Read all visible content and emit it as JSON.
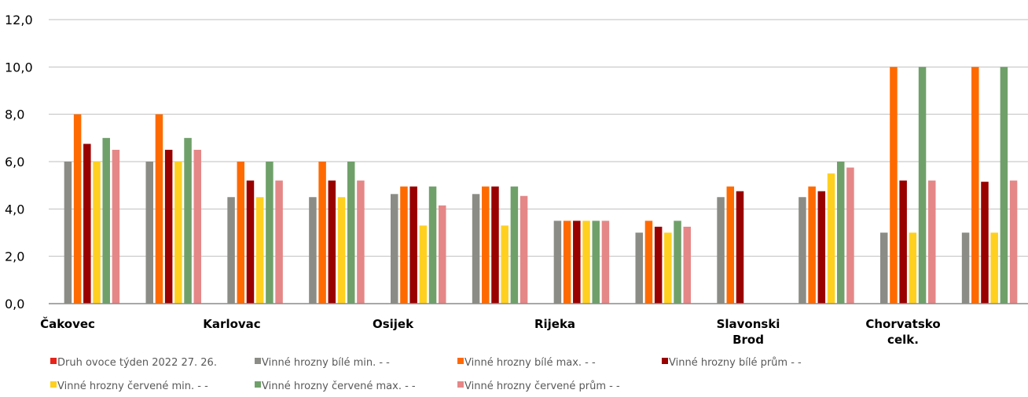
{
  "chart_data": {
    "type": "bar",
    "categories": [
      "Čakovec",
      "",
      "Karlovac",
      "",
      "Osijek",
      "",
      "Rijeka",
      "",
      "Slavonski Brod",
      "",
      "Chorvatsko celk.",
      ""
    ],
    "category_labels": [
      [
        "Čakovec"
      ],
      [],
      [
        "Karlovac"
      ],
      [],
      [
        "Osijek"
      ],
      [],
      [
        "Rijeka"
      ],
      [],
      [
        "Slavonski",
        "Brod"
      ],
      [],
      [
        "Chorvatsko",
        "celk."
      ],
      []
    ],
    "series": [
      {
        "name": "Druh ovoce týden 2022 27. 26.",
        "color": "#e8231a",
        "values": [
          null,
          null,
          null,
          null,
          null,
          null,
          null,
          null,
          null,
          null,
          null,
          null
        ]
      },
      {
        "name": "Vinné hrozny bílé min. - -",
        "color": "#8c8c86",
        "values": [
          6.0,
          6.0,
          4.5,
          4.5,
          4.63,
          4.63,
          3.5,
          3.0,
          4.5,
          4.5,
          3.0,
          3.0
        ]
      },
      {
        "name": "Vinné hrozny bílé max. - -",
        "color": "#ff6a00",
        "values": [
          8.0,
          8.0,
          6.0,
          6.0,
          4.95,
          4.95,
          3.5,
          3.5,
          4.95,
          4.95,
          10.0,
          10.0
        ]
      },
      {
        "name": "Vinné hrozny bílé prům - -",
        "color": "#990000",
        "values": [
          6.75,
          6.5,
          5.2,
          5.2,
          4.95,
          4.95,
          3.5,
          3.25,
          4.75,
          4.75,
          5.2,
          5.15
        ]
      },
      {
        "name": "Vinné hrozny červené min. - -",
        "color": "#ffd01f",
        "values": [
          6.0,
          6.0,
          4.5,
          4.5,
          3.3,
          3.3,
          3.5,
          3.0,
          null,
          5.5,
          3.0,
          3.0
        ]
      },
      {
        "name": "Vinné hrozny červené max. - -",
        "color": "#6fa06a",
        "values": [
          7.0,
          7.0,
          6.0,
          6.0,
          4.95,
          4.95,
          3.5,
          3.5,
          null,
          6.0,
          10.0,
          10.0
        ]
      },
      {
        "name": "Vinné hrozny červené prům - -",
        "color": "#e58787",
        "values": [
          6.5,
          6.5,
          5.2,
          5.2,
          4.15,
          4.55,
          3.5,
          3.25,
          null,
          5.75,
          5.2,
          5.2
        ]
      }
    ],
    "yticks": [
      "0,0",
      "2,0",
      "4,0",
      "6,0",
      "8,0",
      "10,0",
      "12,0"
    ],
    "ylim": [
      0,
      12
    ],
    "grid": true,
    "legend_position": "bottom",
    "title": "",
    "xlabel": "",
    "ylabel": ""
  }
}
